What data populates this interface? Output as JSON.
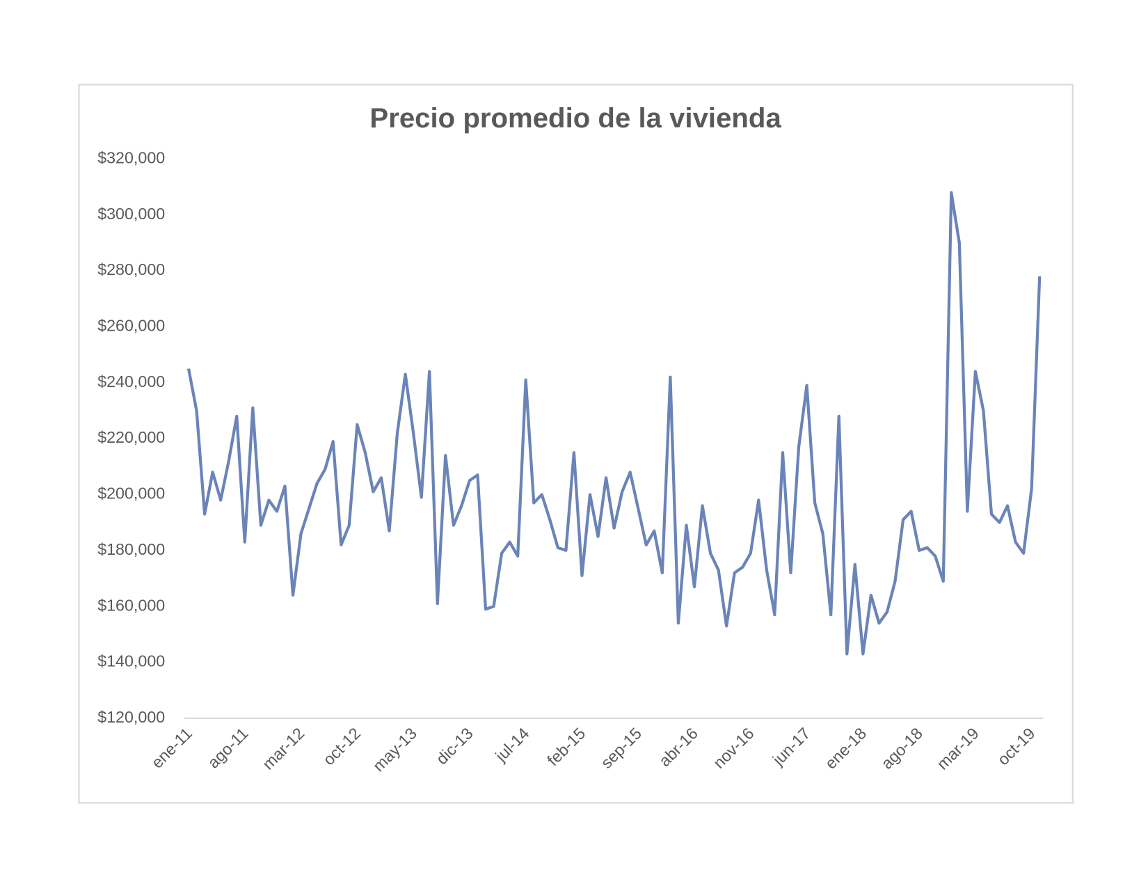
{
  "chart_data": {
    "type": "line",
    "title": "Precio promedio de la vivienda",
    "categories": [
      "ene-11",
      null,
      null,
      null,
      null,
      null,
      null,
      "ago-11",
      null,
      null,
      null,
      null,
      null,
      null,
      "mar-12",
      null,
      null,
      null,
      null,
      null,
      null,
      "oct-12",
      null,
      null,
      null,
      null,
      null,
      null,
      "may-13",
      null,
      null,
      null,
      null,
      null,
      null,
      "dic-13",
      null,
      null,
      null,
      null,
      null,
      null,
      "jul-14",
      null,
      null,
      null,
      null,
      null,
      null,
      "feb-15",
      null,
      null,
      null,
      null,
      null,
      null,
      "sep-15",
      null,
      null,
      null,
      null,
      null,
      null,
      "abr-16",
      null,
      null,
      null,
      null,
      null,
      null,
      "nov-16",
      null,
      null,
      null,
      null,
      null,
      null,
      "jun-17",
      null,
      null,
      null,
      null,
      null,
      null,
      "ene-18",
      null,
      null,
      null,
      null,
      null,
      null,
      "ago-18",
      null,
      null,
      null,
      null,
      null,
      null,
      "mar-19",
      null,
      null,
      null,
      null,
      null,
      null,
      "oct-19",
      null
    ],
    "series": [
      {
        "name": "Precio promedio",
        "color": "#6a84b8",
        "values": [
          245000,
          230000,
          193000,
          208000,
          198000,
          212000,
          228000,
          183000,
          231000,
          189000,
          198000,
          194000,
          203000,
          164000,
          186000,
          195000,
          204000,
          209000,
          219000,
          182000,
          189000,
          225000,
          215000,
          201000,
          206000,
          187000,
          222000,
          243000,
          222000,
          199000,
          244000,
          161000,
          214000,
          189000,
          196000,
          205000,
          207000,
          159000,
          160000,
          179000,
          183000,
          178000,
          241000,
          197000,
          200000,
          191000,
          181000,
          180000,
          215000,
          171000,
          200000,
          185000,
          206000,
          188000,
          201000,
          208000,
          195000,
          182000,
          187000,
          172000,
          242000,
          154000,
          189000,
          167000,
          196000,
          179000,
          173000,
          153000,
          172000,
          174000,
          179000,
          198000,
          173000,
          157000,
          215000,
          172000,
          217000,
          239000,
          197000,
          186000,
          157000,
          228000,
          143000,
          175000,
          143000,
          164000,
          154000,
          158000,
          169000,
          191000,
          194000,
          180000,
          181000,
          178000,
          169000,
          308000,
          290000,
          194000,
          244000,
          230000,
          193000,
          190000,
          196000,
          183000,
          179000,
          202000,
          278000
        ]
      }
    ],
    "ylim": [
      120000,
      320000
    ],
    "yticks": [
      {
        "value": 120000,
        "label": "$120,000"
      },
      {
        "value": 140000,
        "label": "$140,000"
      },
      {
        "value": 160000,
        "label": "$160,000"
      },
      {
        "value": 180000,
        "label": "$180,000"
      },
      {
        "value": 200000,
        "label": "$200,000"
      },
      {
        "value": 220000,
        "label": "$220,000"
      },
      {
        "value": 240000,
        "label": "$240,000"
      },
      {
        "value": 260000,
        "label": "$260,000"
      },
      {
        "value": 280000,
        "label": "$280,000"
      },
      {
        "value": 300000,
        "label": "$300,000"
      },
      {
        "value": 320000,
        "label": "$320,000"
      }
    ],
    "grid": false
  }
}
